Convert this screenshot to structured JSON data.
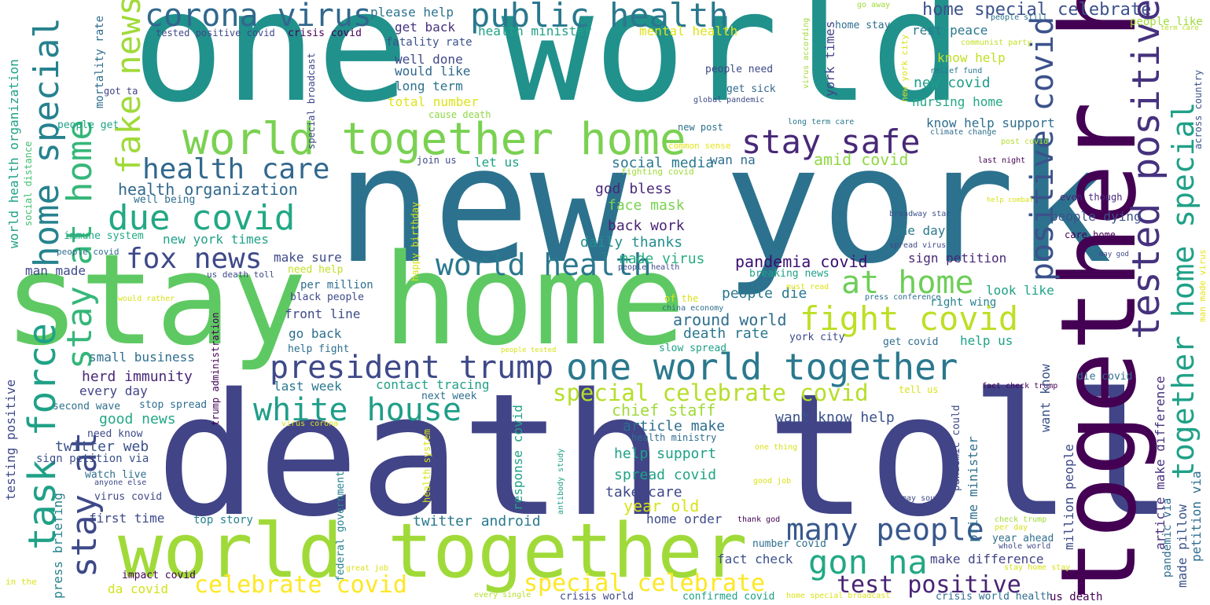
{
  "words": [
    {
      "text": "one world",
      "color": "#21918c"
    },
    {
      "text": "new york",
      "color": "#2c728e"
    },
    {
      "text": "stay home",
      "color": "#5ec962"
    },
    {
      "text": "death toll",
      "color": "#414487"
    },
    {
      "text": "world together",
      "color": "#a0da39"
    },
    {
      "text": "together home",
      "color": "#440154"
    },
    {
      "text": "world together home",
      "color": "#7ad151"
    },
    {
      "text": "public health",
      "color": "#2a788e"
    },
    {
      "text": "corona virus",
      "color": "#31688e"
    },
    {
      "text": "home special celebrate",
      "color": "#3b528b"
    },
    {
      "text": "fake news",
      "color": "#a0da39"
    },
    {
      "text": "stay safe",
      "color": "#482878"
    },
    {
      "text": "health care",
      "color": "#31688e"
    },
    {
      "text": "due covid",
      "color": "#22a884"
    },
    {
      "text": "fox news",
      "color": "#3e4989"
    },
    {
      "text": "world health",
      "color": "#2a788e"
    },
    {
      "text": "at home",
      "color": "#6ece58"
    },
    {
      "text": "fight covid",
      "color": "#bddf26"
    },
    {
      "text": "president trump",
      "color": "#3e4989"
    },
    {
      "text": "one world together",
      "color": "#2a788e"
    },
    {
      "text": "white house",
      "color": "#1f9e89"
    },
    {
      "text": "many people",
      "color": "#38588c"
    },
    {
      "text": "gon na",
      "color": "#22a884"
    },
    {
      "text": "special celebrate covid",
      "color": "#b5de2b"
    },
    {
      "text": "celebrate covid",
      "color": "#fde725"
    },
    {
      "text": "special celebrate",
      "color": "#fde725"
    },
    {
      "text": "test positive",
      "color": "#482475"
    },
    {
      "text": "task force",
      "color": "#1fa187"
    },
    {
      "text": "stay at home",
      "color": "#35b779"
    },
    {
      "text": "home special",
      "color": "#26828e"
    },
    {
      "text": "stay at",
      "color": "#3e4989"
    },
    {
      "text": "positive covid",
      "color": "#3b528b"
    },
    {
      "text": "tested positive",
      "color": "#46327e"
    },
    {
      "text": "together home special",
      "color": "#1fa187"
    },
    {
      "text": "health organization",
      "color": "#31688e"
    },
    {
      "text": "social media",
      "color": "#2a788e"
    },
    {
      "text": "amid covid",
      "color": "#8fd744"
    },
    {
      "text": "god bless",
      "color": "#482878"
    },
    {
      "text": "face mask",
      "color": "#7ad151"
    },
    {
      "text": "back work",
      "color": "#482475"
    },
    {
      "text": "daily thanks",
      "color": "#228d8d"
    },
    {
      "text": "made virus",
      "color": "#28ae80"
    },
    {
      "text": "pandemia covid",
      "color": "#3b0f70"
    },
    {
      "text": "people die",
      "color": "#2a788e"
    },
    {
      "text": "around world",
      "color": "#2e6e8e"
    },
    {
      "text": "death rate",
      "color": "#2a788e"
    },
    {
      "text": "herd immunity",
      "color": "#482878"
    },
    {
      "text": "contact tracing",
      "color": "#1fa187"
    },
    {
      "text": "chief staff",
      "color": "#a0da39"
    },
    {
      "text": "article make",
      "color": "#2e6e8e"
    },
    {
      "text": "want know help",
      "color": "#3b528b"
    },
    {
      "text": "help support",
      "color": "#1fa187"
    },
    {
      "text": "spread covid",
      "color": "#20a486"
    },
    {
      "text": "take care",
      "color": "#3e4989"
    },
    {
      "text": "year old",
      "color": "#d8e219"
    },
    {
      "text": "home order",
      "color": "#3e4989"
    },
    {
      "text": "twitter android",
      "color": "#2a788e"
    },
    {
      "text": "twitter web",
      "color": "#3b528b"
    },
    {
      "text": "first time",
      "color": "#3e4989"
    },
    {
      "text": "good news",
      "color": "#22a884"
    },
    {
      "text": "every day",
      "color": "#414487"
    },
    {
      "text": "small business",
      "color": "#2e6e8e"
    },
    {
      "text": "last week",
      "color": "#2a788e"
    },
    {
      "text": "fact check",
      "color": "#3b528b"
    },
    {
      "text": "make difference",
      "color": "#414487"
    },
    {
      "text": "da covid",
      "color": "#d2e21b"
    },
    {
      "text": "please help",
      "color": "#2c728e"
    },
    {
      "text": "get back",
      "color": "#46327e"
    },
    {
      "text": "health minister",
      "color": "#1fa187"
    },
    {
      "text": "mental health",
      "color": "#dde318"
    },
    {
      "text": "fatality rate",
      "color": "#3b528b"
    },
    {
      "text": "well done",
      "color": "#3e4989"
    },
    {
      "text": "would like",
      "color": "#31688e"
    },
    {
      "text": "long term",
      "color": "#2c728e"
    },
    {
      "text": "total number",
      "color": "#dde318"
    },
    {
      "text": "cause death",
      "color": "#8fd744"
    },
    {
      "text": "rest peace",
      "color": "#2a788e"
    },
    {
      "text": "know help",
      "color": "#c0df25"
    },
    {
      "text": "new covid",
      "color": "#1f9e89"
    },
    {
      "text": "nursing home",
      "color": "#22a884"
    },
    {
      "text": "know help support",
      "color": "#2e6e8e"
    },
    {
      "text": "crisis covid",
      "color": "#440154"
    },
    {
      "text": "tested positive covid",
      "color": "#3e4989"
    },
    {
      "text": "mortality rate",
      "color": "#2e6e8e"
    },
    {
      "text": "got ta",
      "color": "#414487"
    },
    {
      "text": "people need",
      "color": "#3e4989"
    },
    {
      "text": "get sick",
      "color": "#31688e"
    },
    {
      "text": "home stay",
      "color": "#2e6e8e"
    },
    {
      "text": "york times",
      "color": "#414487"
    },
    {
      "text": "go away",
      "color": "#a0da39"
    },
    {
      "text": "people still",
      "color": "#2c728e"
    },
    {
      "text": "communist party",
      "color": "#c2df23"
    },
    {
      "text": "relief fund",
      "color": "#2a788e"
    },
    {
      "text": "global pandemic",
      "color": "#3e4989"
    },
    {
      "text": "new post",
      "color": "#2e6e8e"
    },
    {
      "text": "long term care",
      "color": "#2a788e"
    },
    {
      "text": "common sense",
      "color": "#e5e419"
    },
    {
      "text": "fighting covid",
      "color": "#a0da39"
    },
    {
      "text": "let us",
      "color": "#1fa187"
    },
    {
      "text": "join us",
      "color": "#3e4989"
    },
    {
      "text": "wan na",
      "color": "#2e6e8e"
    },
    {
      "text": "climate change",
      "color": "#2e6e8e"
    },
    {
      "text": "post covid",
      "color": "#b5de2b"
    },
    {
      "text": "last night",
      "color": "#440154"
    },
    {
      "text": "people like",
      "color": "#a0da39"
    },
    {
      "text": "term care",
      "color": "#b5de2b"
    },
    {
      "text": "across country",
      "color": "#3b528b"
    },
    {
      "text": "even though",
      "color": "#482878"
    },
    {
      "text": "help combat",
      "color": "#d8e219"
    },
    {
      "text": "broadway star",
      "color": "#3b528b"
    },
    {
      "text": "people dying",
      "color": "#3b528b"
    },
    {
      "text": "one day",
      "color": "#2a788e"
    },
    {
      "text": "care home",
      "color": "#440154"
    },
    {
      "text": "spread virus",
      "color": "#3e4989"
    },
    {
      "text": "sign petition",
      "color": "#482878"
    },
    {
      "text": "may god",
      "color": "#3e4989"
    },
    {
      "text": "man made virus",
      "color": "#e5e419"
    },
    {
      "text": "breaking news",
      "color": "#1fa187"
    },
    {
      "text": "look like",
      "color": "#1fa187"
    },
    {
      "text": "must read",
      "color": "#dde318"
    },
    {
      "text": "press conference",
      "color": "#2e6e8e"
    },
    {
      "text": "right wing",
      "color": "#26828e"
    },
    {
      "text": "china economy",
      "color": "#2e6e8e"
    },
    {
      "text": "of the",
      "color": "#dde318"
    },
    {
      "text": "york city",
      "color": "#3e4989"
    },
    {
      "text": "slow spread",
      "color": "#1fa187"
    },
    {
      "text": "get covid",
      "color": "#2e6e8e"
    },
    {
      "text": "help us",
      "color": "#1fa187"
    },
    {
      "text": "tell us",
      "color": "#d8e219"
    },
    {
      "text": "fact check trump",
      "color": "#440154"
    },
    {
      "text": "die covid",
      "color": "#2e6e8e"
    },
    {
      "text": "people tested",
      "color": "#d8e219"
    },
    {
      "text": "pandemic could",
      "color": "#3e4989"
    },
    {
      "text": "prime minister",
      "color": "#2e6e8e"
    },
    {
      "text": "million people",
      "color": "#3e4989"
    },
    {
      "text": "want know",
      "color": "#3b528b"
    },
    {
      "text": "article make difference",
      "color": "#46327e"
    },
    {
      "text": "pandemic via",
      "color": "#2e6e8e"
    },
    {
      "text": "made pillow",
      "color": "#3b528b"
    },
    {
      "text": "petition via",
      "color": "#2e6e8e"
    },
    {
      "text": "check trump",
      "color": "#a0da39"
    },
    {
      "text": "per day",
      "color": "#d8e219"
    },
    {
      "text": "year ahead",
      "color": "#2e6e8e"
    },
    {
      "text": "whole world",
      "color": "#3e4989"
    },
    {
      "text": "stay home stay",
      "color": "#d8e219"
    },
    {
      "text": "crisis world health",
      "color": "#2e6e8e"
    },
    {
      "text": "us death",
      "color": "#440154"
    },
    {
      "text": "home special broadcast",
      "color": "#d8e219"
    },
    {
      "text": "confirmed covid",
      "color": "#1fa187"
    },
    {
      "text": "crisis world",
      "color": "#3e4989"
    },
    {
      "text": "every single",
      "color": "#b5de2b"
    },
    {
      "text": "number covid",
      "color": "#2e6e8e"
    },
    {
      "text": "thank god",
      "color": "#440154"
    },
    {
      "text": "may soul",
      "color": "#3e4989"
    },
    {
      "text": "good job",
      "color": "#d8e219"
    },
    {
      "text": "one thing",
      "color": "#d8e219"
    },
    {
      "text": "top story",
      "color": "#26828e"
    },
    {
      "text": "great job",
      "color": "#d8e219"
    },
    {
      "text": "impact covid",
      "color": "#440154"
    },
    {
      "text": "in the",
      "color": "#d8e219"
    },
    {
      "text": "press briefing",
      "color": "#26828e"
    },
    {
      "text": "testing positive",
      "color": "#3e4989"
    },
    {
      "text": "sign petition via",
      "color": "#3b528b"
    },
    {
      "text": "watch live",
      "color": "#2e6e8e"
    },
    {
      "text": "anyone else",
      "color": "#3e4989"
    },
    {
      "text": "virus covid",
      "color": "#3e4989"
    },
    {
      "text": "need know",
      "color": "#3e4989"
    },
    {
      "text": "second wave",
      "color": "#2e6e8e"
    },
    {
      "text": "stop spread",
      "color": "#2e6e8e"
    },
    {
      "text": "virus corona",
      "color": "#d8e219"
    },
    {
      "text": "next week",
      "color": "#2e6e8e"
    },
    {
      "text": "response covid",
      "color": "#1fa187"
    },
    {
      "text": "go back",
      "color": "#2e6e8e"
    },
    {
      "text": "help fight",
      "color": "#2e6e8e"
    },
    {
      "text": "front line",
      "color": "#3e4989"
    },
    {
      "text": "black people",
      "color": "#3e4989"
    },
    {
      "text": "per million",
      "color": "#2e6e8e"
    },
    {
      "text": "need help",
      "color": "#c2df23"
    },
    {
      "text": "make sure",
      "color": "#3e4989"
    },
    {
      "text": "us death toll",
      "color": "#3e4989"
    },
    {
      "text": "would rather",
      "color": "#d8e219"
    },
    {
      "text": "man made",
      "color": "#3e4989"
    },
    {
      "text": "people covid",
      "color": "#2e6e8e"
    },
    {
      "text": "immune system",
      "color": "#22a884"
    },
    {
      "text": "new york times",
      "color": "#1fa187"
    },
    {
      "text": "well being",
      "color": "#2e6e8e"
    },
    {
      "text": "people get",
      "color": "#20a486"
    },
    {
      "text": "social distance",
      "color": "#44bf70"
    },
    {
      "text": "world health organization",
      "color": "#1fa187"
    },
    {
      "text": "special broadcast",
      "color": "#3e4989"
    },
    {
      "text": "happy birthday",
      "color": "#d8e219"
    },
    {
      "text": "trump administration",
      "color": "#440154"
    },
    {
      "text": "federal government",
      "color": "#26828e"
    },
    {
      "text": "health system",
      "color": "#d8e219"
    },
    {
      "text": "antibody study",
      "color": "#1fa187"
    },
    {
      "text": "health ministry",
      "color": "#2e6e8e"
    },
    {
      "text": "people health",
      "color": "#3e4989"
    },
    {
      "text": "virus according",
      "color": "#a0da39"
    },
    {
      "text": "new york city",
      "color": "#d8e219"
    }
  ]
}
